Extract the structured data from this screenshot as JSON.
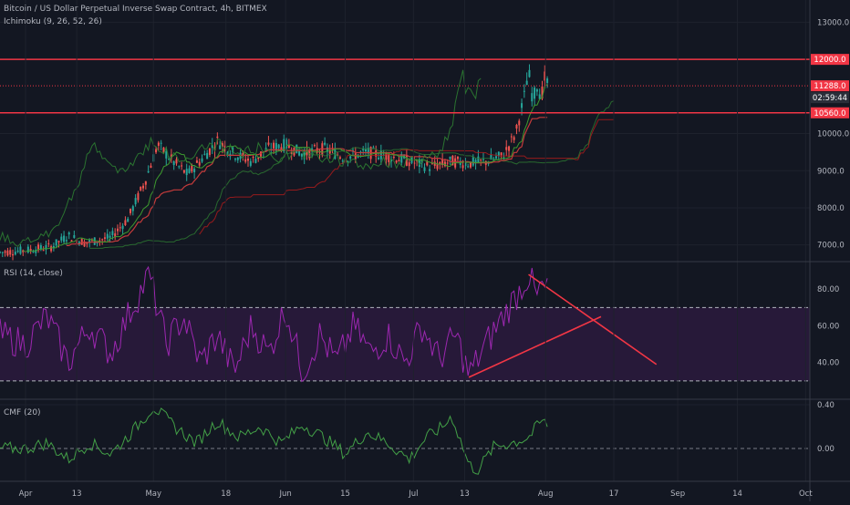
{
  "header": {
    "title": "Bitcoin / US Dollar Perpetual Inverse Swap Contract, 4h, BITMEX",
    "indicator": "Ichimoku (9, 26, 52, 26)"
  },
  "rsi_panel": {
    "label": "RSI (14, close)"
  },
  "cmf_panel": {
    "label": "CMF (20)"
  },
  "colors": {
    "background": "#131722",
    "grid": "#1e222d",
    "up": "#26a69a",
    "down": "#ef5350",
    "conversion": "#3d9b2f",
    "base": "#c43b3b",
    "lagging": "#2e7d32",
    "rsi": "#9c27b0",
    "rsi_band": "#2a1a3c",
    "cmf": "#43a047",
    "level_line": "#f23645",
    "trendline": "#f23645",
    "axis_text": "#b2b5be",
    "price_tag": "#f23645",
    "countdown_tag": "#2a2e39"
  },
  "chart_data": [
    {
      "type": "candlestick",
      "title": "Bitcoin / US Dollar Perpetual Inverse Swap Contract, 4h, BITMEX",
      "x_ticks": [
        "Apr",
        "13",
        "May",
        "18",
        "Jun",
        "15",
        "Jul",
        "13",
        "Aug",
        "17",
        "Sep",
        "14",
        "Oct"
      ],
      "x_tick_days": [
        0,
        12,
        30,
        47,
        61,
        75,
        91,
        103,
        122,
        138,
        153,
        167,
        183
      ],
      "x_range_days": [
        -6,
        184
      ],
      "y_ticks": [
        7000.0,
        8000.0,
        9000.0,
        10000.0,
        13000.0
      ],
      "ylim": [
        6550,
        13600
      ],
      "horizontal_levels": [
        12000.0,
        10560.0
      ],
      "price_labels": {
        "level_high": "12000.0",
        "last_price": "11288.0",
        "countdown": "02:59:44",
        "level_low": "10560.0"
      },
      "last_price": 11288.0,
      "price_path": [
        [
          -6,
          6800
        ],
        [
          0,
          6850
        ],
        [
          6,
          6950
        ],
        [
          10,
          7250
        ],
        [
          14,
          7050
        ],
        [
          20,
          7200
        ],
        [
          24,
          7700
        ],
        [
          28,
          8700
        ],
        [
          31,
          9700
        ],
        [
          35,
          9200
        ],
        [
          38,
          8900
        ],
        [
          42,
          9400
        ],
        [
          45,
          9800
        ],
        [
          49,
          9450
        ],
        [
          53,
          9250
        ],
        [
          57,
          9600
        ],
        [
          61,
          9700
        ],
        [
          65,
          9450
        ],
        [
          70,
          9600
        ],
        [
          75,
          9350
        ],
        [
          80,
          9500
        ],
        [
          85,
          9400
        ],
        [
          90,
          9250
        ],
        [
          95,
          9100
        ],
        [
          100,
          9250
        ],
        [
          104,
          9200
        ],
        [
          108,
          9250
        ],
        [
          112,
          9400
        ],
        [
          115,
          10000
        ],
        [
          117,
          11000
        ],
        [
          118,
          11700
        ],
        [
          119,
          10900
        ],
        [
          120,
          11300
        ],
        [
          121,
          11000
        ],
        [
          122,
          11600
        ],
        [
          122.5,
          11288
        ]
      ],
      "series": [
        {
          "name": "Ichimoku (9, 26, 52, 26)"
        }
      ]
    },
    {
      "type": "line",
      "title": "RSI (14, close)",
      "y_ticks": [
        40.0,
        60.0,
        80.0
      ],
      "ylim": [
        20,
        95
      ],
      "upper_band": 70,
      "lower_band": 30,
      "rsi_anchors": [
        [
          -6,
          55
        ],
        [
          0,
          50
        ],
        [
          5,
          65
        ],
        [
          10,
          40
        ],
        [
          15,
          60
        ],
        [
          20,
          45
        ],
        [
          25,
          70
        ],
        [
          29,
          88
        ],
        [
          33,
          50
        ],
        [
          37,
          65
        ],
        [
          41,
          40
        ],
        [
          45,
          55
        ],
        [
          49,
          35
        ],
        [
          53,
          60
        ],
        [
          57,
          45
        ],
        [
          61,
          70
        ],
        [
          65,
          35
        ],
        [
          69,
          55
        ],
        [
          73,
          40
        ],
        [
          77,
          60
        ],
        [
          81,
          45
        ],
        [
          85,
          55
        ],
        [
          89,
          40
        ],
        [
          93,
          60
        ],
        [
          97,
          42
        ],
        [
          101,
          55
        ],
        [
          104,
          33
        ],
        [
          108,
          50
        ],
        [
          112,
          65
        ],
        [
          116,
          80
        ],
        [
          118,
          88
        ],
        [
          120,
          75
        ],
        [
          121,
          82
        ],
        [
          122.5,
          78
        ]
      ],
      "trendlines": [
        {
          "from": [
            118,
            88
          ],
          "to": [
            148,
            39
          ]
        },
        {
          "from": [
            104,
            32
          ],
          "to": [
            135,
            65
          ]
        }
      ]
    },
    {
      "type": "line",
      "title": "CMF (20)",
      "y_ticks": [
        0.0,
        0.4
      ],
      "ylim": [
        -0.3,
        0.45
      ],
      "cmf_anchors": [
        [
          -6,
          0.0
        ],
        [
          0,
          0.0
        ],
        [
          5,
          0.05
        ],
        [
          10,
          -0.1
        ],
        [
          15,
          0.05
        ],
        [
          20,
          -0.05
        ],
        [
          25,
          0.15
        ],
        [
          30,
          0.38
        ],
        [
          35,
          0.2
        ],
        [
          40,
          0.05
        ],
        [
          45,
          0.25
        ],
        [
          50,
          0.1
        ],
        [
          55,
          0.2
        ],
        [
          60,
          0.05
        ],
        [
          65,
          0.22
        ],
        [
          70,
          0.1
        ],
        [
          75,
          -0.05
        ],
        [
          80,
          0.15
        ],
        [
          85,
          0.05
        ],
        [
          90,
          -0.1
        ],
        [
          94,
          0.1
        ],
        [
          98,
          0.2
        ],
        [
          100,
          0.3
        ],
        [
          104,
          -0.15
        ],
        [
          106,
          -0.2
        ],
        [
          110,
          0.02
        ],
        [
          114,
          0.05
        ],
        [
          118,
          0.1
        ],
        [
          121,
          0.25
        ],
        [
          122.5,
          0.22
        ]
      ]
    }
  ]
}
